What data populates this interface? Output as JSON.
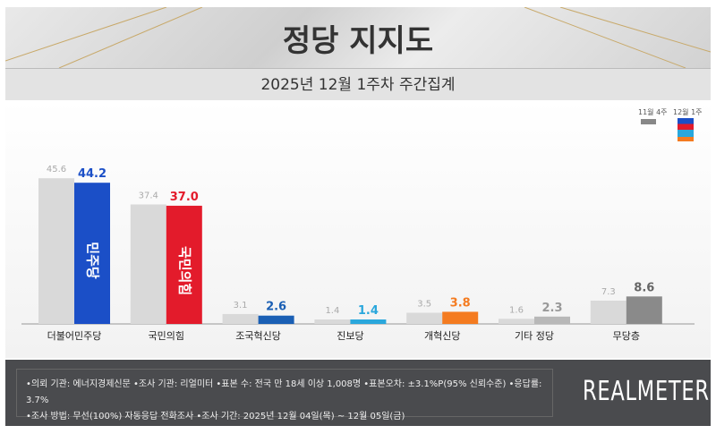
{
  "header": {
    "title": "정당 지지도",
    "subtitle": "2025년 12월 1주차 주간집계"
  },
  "chart_data": {
    "type": "bar",
    "categories": [
      "더불어민주당",
      "국민의힘",
      "조국혁신당",
      "진보당",
      "개혁신당",
      "기타 정당",
      "무당층"
    ],
    "series": [
      {
        "name": "11월 4주",
        "values": [
          45.6,
          37.4,
          3.1,
          1.4,
          3.5,
          1.6,
          7.3
        ],
        "color": "#d9d9d9"
      },
      {
        "name": "12월 1주",
        "values": [
          44.2,
          37.0,
          2.6,
          1.4,
          3.8,
          2.3,
          8.6
        ],
        "colors": [
          "#1b4fc7",
          "#e31b2b",
          "#1a5fb4",
          "#2aa7dc",
          "#f47b20",
          "#b8b8b8",
          "#8a8a8a"
        ]
      }
    ],
    "label_colors": [
      "#1b4fc7",
      "#e31b2b",
      "#1a5fb4",
      "#2aa7dc",
      "#f47b20",
      "#999999",
      "#666666"
    ],
    "bar_logos": [
      "민주당",
      "국민의힘"
    ],
    "legend_placement": "top-right",
    "grid": false
  },
  "footer": {
    "line1": "•의뢰 기관: 에너지경제신문  •조사 기관: 리얼미터 •표본 수: 전국 만 18세 이상 1,008명 •표본오차: ±3.1%P(95% 신뢰수준) •응답률: 3.7%",
    "line2": "•조사 방법: 무선(100%) 자동응답 전화조사 •조사 기간: 2025년 12월 04일(목) ~ 12월 05일(금)",
    "logo": "REALMETER"
  }
}
